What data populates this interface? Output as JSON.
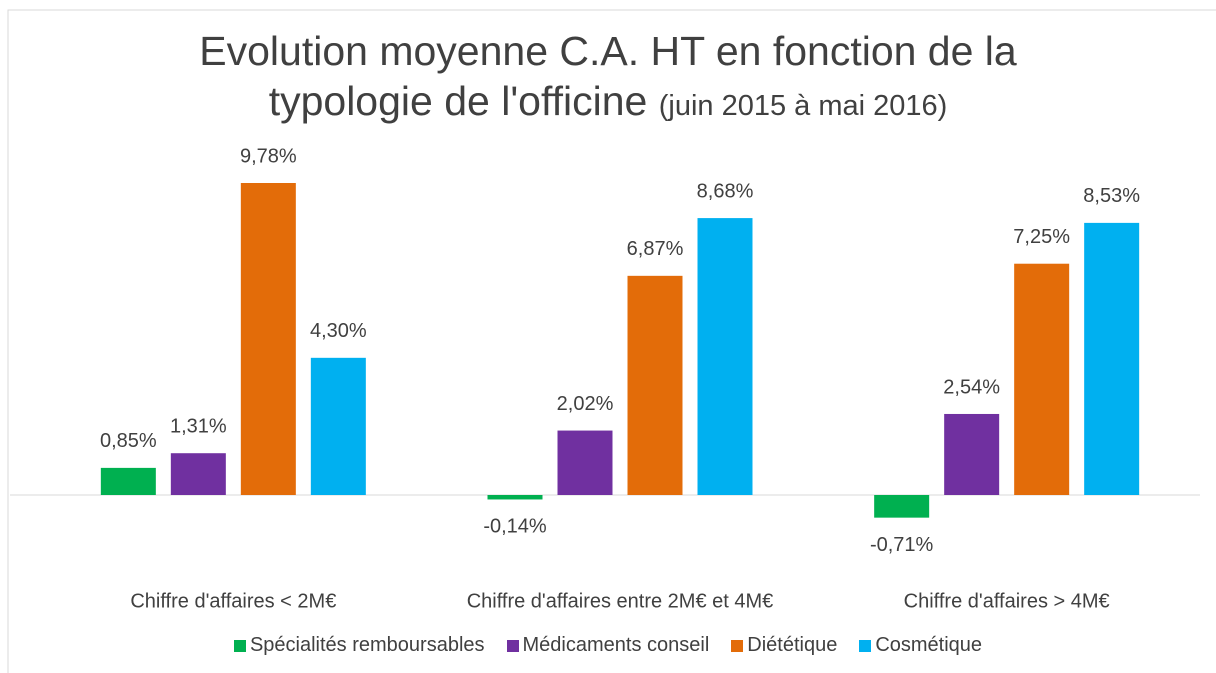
{
  "chart_data": {
    "type": "bar",
    "title": "Evolution moyenne C.A. HT en fonction de la typologie de l'officine",
    "subtitle": "(juin 2015 à mai 2016)",
    "categories": [
      "Chiffre d'affaires < 2M€",
      "Chiffre d'affaires entre 2M€ et 4M€",
      "Chiffre d'affaires > 4M€"
    ],
    "series": [
      {
        "name": "Spécialités remboursables",
        "color": "#00b050",
        "values": [
          0.85,
          -0.14,
          -0.71
        ],
        "value_labels": [
          "0,85%",
          "-0,14%",
          "-0,71%"
        ]
      },
      {
        "name": "Médicaments conseil",
        "color": "#7030a0",
        "values": [
          1.31,
          2.02,
          2.54
        ],
        "value_labels": [
          "1,31%",
          "2,02%",
          "2,54%"
        ]
      },
      {
        "name": "Diététique",
        "color": "#e36c09",
        "values": [
          9.78,
          6.87,
          7.25
        ],
        "value_labels": [
          "9,78%",
          "6,87%",
          "7,25%"
        ]
      },
      {
        "name": "Cosmétique",
        "color": "#00b0f0",
        "values": [
          4.3,
          8.68,
          8.53
        ],
        "value_labels": [
          "4,30%",
          "8,68%",
          "8,53%"
        ]
      }
    ],
    "legend": "bottom"
  }
}
